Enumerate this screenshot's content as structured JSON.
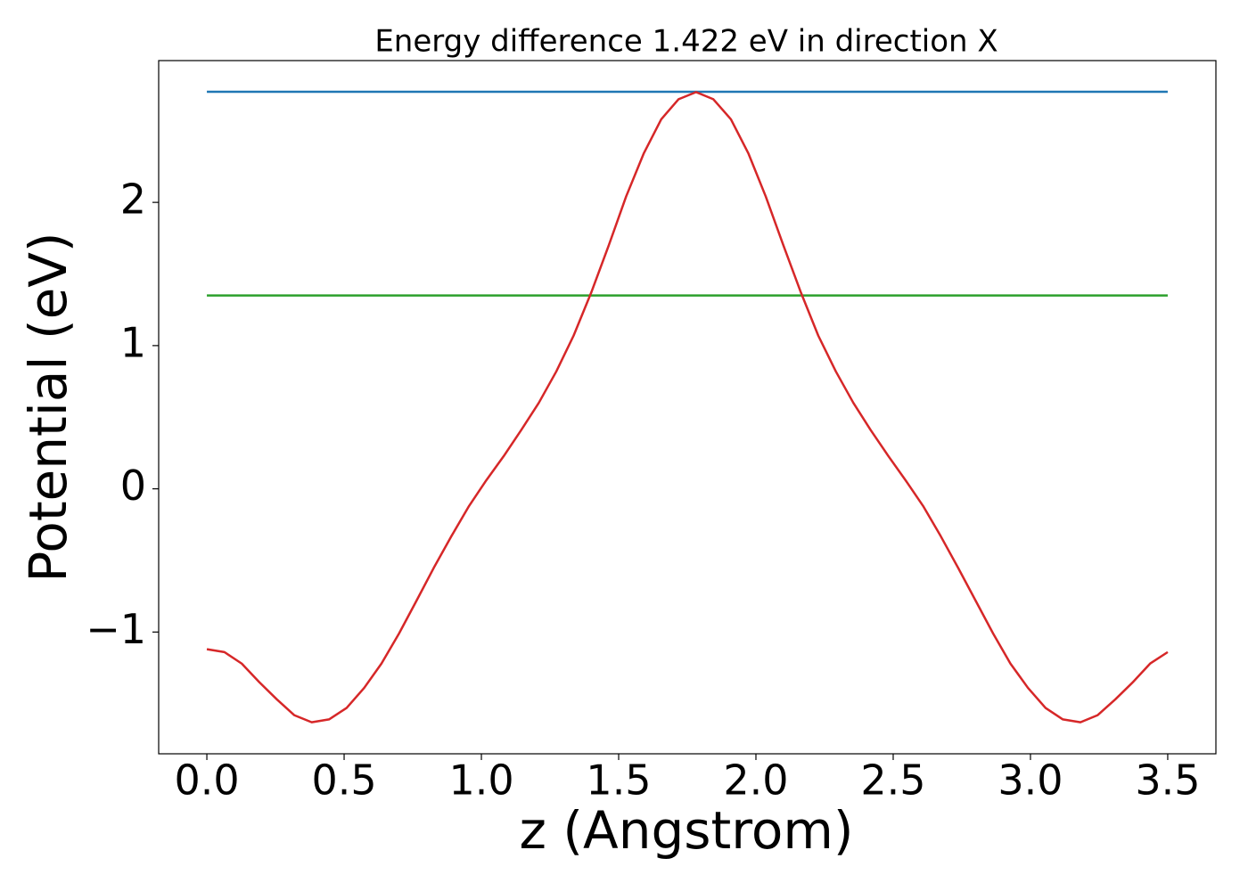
{
  "chart_data": {
    "type": "line",
    "title": "Energy difference 1.422 eV in direction X",
    "x_label": "z (Angstrom)",
    "y_label": "Potential (eV)",
    "xlim": [
      -0.1755,
      3.6755
    ],
    "ylim": [
      -1.85,
      2.99
    ],
    "xticks": [
      {
        "value": 0,
        "label": "0.0"
      },
      {
        "value": 0.5,
        "label": "0.5"
      },
      {
        "value": 1,
        "label": "1.0"
      },
      {
        "value": 1.5,
        "label": "1.5"
      },
      {
        "value": 2,
        "label": "2.0"
      },
      {
        "value": 2.5,
        "label": "2.5"
      },
      {
        "value": 3,
        "label": "3.0"
      },
      {
        "value": 3.5,
        "label": "3.5"
      }
    ],
    "yticks": [
      {
        "value": -1,
        "label": "−1"
      },
      0,
      1,
      2
    ],
    "grid": false,
    "series": [
      {
        "color": "#1f77b4",
        "x": [
          0,
          3.5
        ],
        "values": [
          2.772,
          2.772
        ]
      },
      {
        "color": "#2ca02c",
        "x": [
          0,
          3.5
        ],
        "values": [
          1.35,
          1.35
        ]
      },
      {
        "color": "#d62728",
        "x": [
          0,
          0.064,
          0.127,
          0.191,
          0.255,
          0.318,
          0.382,
          0.445,
          0.509,
          0.573,
          0.636,
          0.7,
          0.764,
          0.827,
          0.891,
          0.955,
          1.018,
          1.082,
          1.145,
          1.209,
          1.273,
          1.336,
          1.4,
          1.464,
          1.527,
          1.591,
          1.655,
          1.718,
          1.782,
          1.845,
          1.909,
          1.973,
          2.036,
          2.1,
          2.164,
          2.227,
          2.291,
          2.355,
          2.418,
          2.482,
          2.545,
          2.609,
          2.673,
          2.736,
          2.8,
          2.864,
          2.927,
          2.991,
          3.055,
          3.118,
          3.182,
          3.245,
          3.309,
          3.373,
          3.436,
          3.5
        ],
        "values": [
          -1.12,
          -1.14,
          -1.22,
          -1.35,
          -1.47,
          -1.58,
          -1.63,
          -1.61,
          -1.53,
          -1.39,
          -1.22,
          -1.01,
          -0.78,
          -0.55,
          -0.33,
          -0.12,
          0.06,
          0.23,
          0.41,
          0.6,
          0.82,
          1.07,
          1.37,
          1.7,
          2.04,
          2.34,
          2.58,
          2.72,
          2.77,
          2.72,
          2.58,
          2.34,
          2.04,
          1.7,
          1.37,
          1.07,
          0.82,
          0.6,
          0.41,
          0.23,
          0.06,
          -0.12,
          -0.33,
          -0.55,
          -0.78,
          -1.01,
          -1.22,
          -1.39,
          -1.53,
          -1.61,
          -1.63,
          -1.58,
          -1.47,
          -1.35,
          -1.22,
          -1.14
        ]
      }
    ]
  }
}
